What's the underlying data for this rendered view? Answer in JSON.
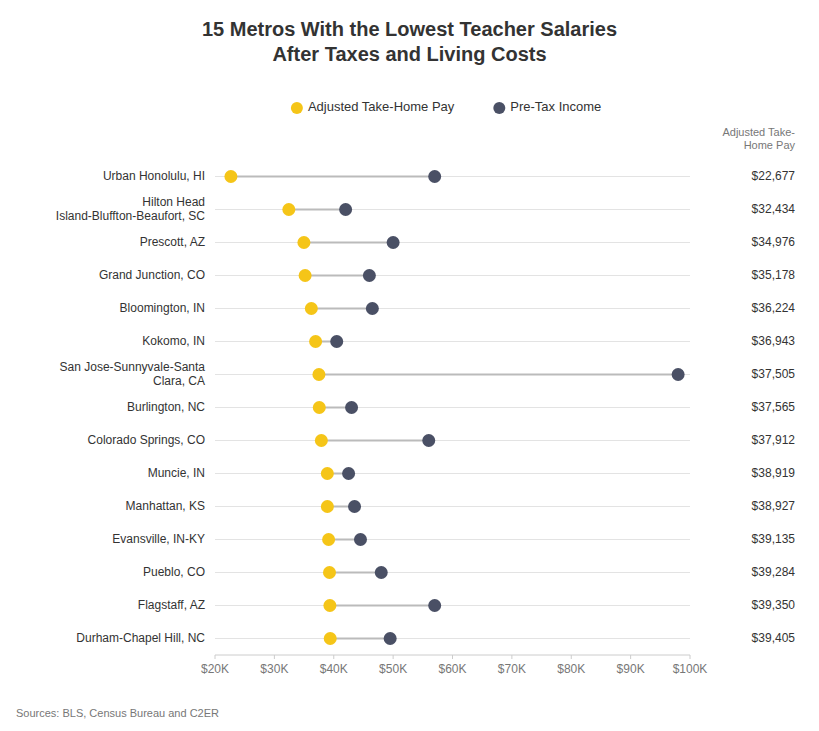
{
  "chart_data": {
    "type": "dumbbell",
    "title": "15 Metros With the Lowest Teacher Salaries\nAfter Taxes and Living Costs",
    "categories": [
      "Urban Honolulu, HI",
      "Hilton Head\nIsland-Bluffton-Beaufort, SC",
      "Prescott, AZ",
      "Grand Junction, CO",
      "Bloomington, IN",
      "Kokomo, IN",
      "San Jose-Sunnyvale-Santa\nClara, CA",
      "Burlington, NC",
      "Colorado Springs, CO",
      "Muncie, IN",
      "Manhattan, KS",
      "Evansville, IN-KY",
      "Pueblo, CO",
      "Flagstaff, AZ",
      "Durham-Chapel Hill, NC"
    ],
    "series": [
      {
        "name": "Adjusted Take-Home Pay",
        "color": "#F5C518",
        "values": [
          22677,
          32434,
          34976,
          35178,
          36224,
          36943,
          37505,
          37565,
          37912,
          38919,
          38927,
          39135,
          39284,
          39350,
          39405
        ],
        "value_labels": [
          "$22,677",
          "$32,434",
          "$34,976",
          "$35,178",
          "$36,224",
          "$36,943",
          "$37,505",
          "$37,565",
          "$37,912",
          "$38,919",
          "$38,927",
          "$39,135",
          "$39,284",
          "$39,350",
          "$39,405"
        ]
      },
      {
        "name": "Pre-Tax Income",
        "color": "#4A5065",
        "values": [
          57000,
          42000,
          50000,
          46000,
          46500,
          40500,
          98000,
          43000,
          56000,
          42500,
          43500,
          44500,
          48000,
          57000,
          49500
        ]
      }
    ],
    "color": "#BBBBBB",
    "orientation": "horizontal",
    "xlim": [
      20000,
      100000
    ],
    "xticks": [
      {
        "value": 20000,
        "label": "$20K"
      },
      {
        "value": 30000,
        "label": "$30K"
      },
      {
        "value": 40000,
        "label": "$40K"
      },
      {
        "value": 50000,
        "label": "$50K"
      },
      {
        "value": 60000,
        "label": "$60K"
      },
      {
        "value": 70000,
        "label": "$70K"
      },
      {
        "value": 80000,
        "label": "$80K"
      },
      {
        "value": 90000,
        "label": "$90K"
      },
      {
        "value": 100000,
        "label": "$100K"
      }
    ],
    "grid": true,
    "legend": "top",
    "data_labels": true,
    "annotations": [
      "Adjusted Take-\nHome Pay"
    ],
    "source": "Sources: BLS, Census Bureau and C2ER"
  }
}
